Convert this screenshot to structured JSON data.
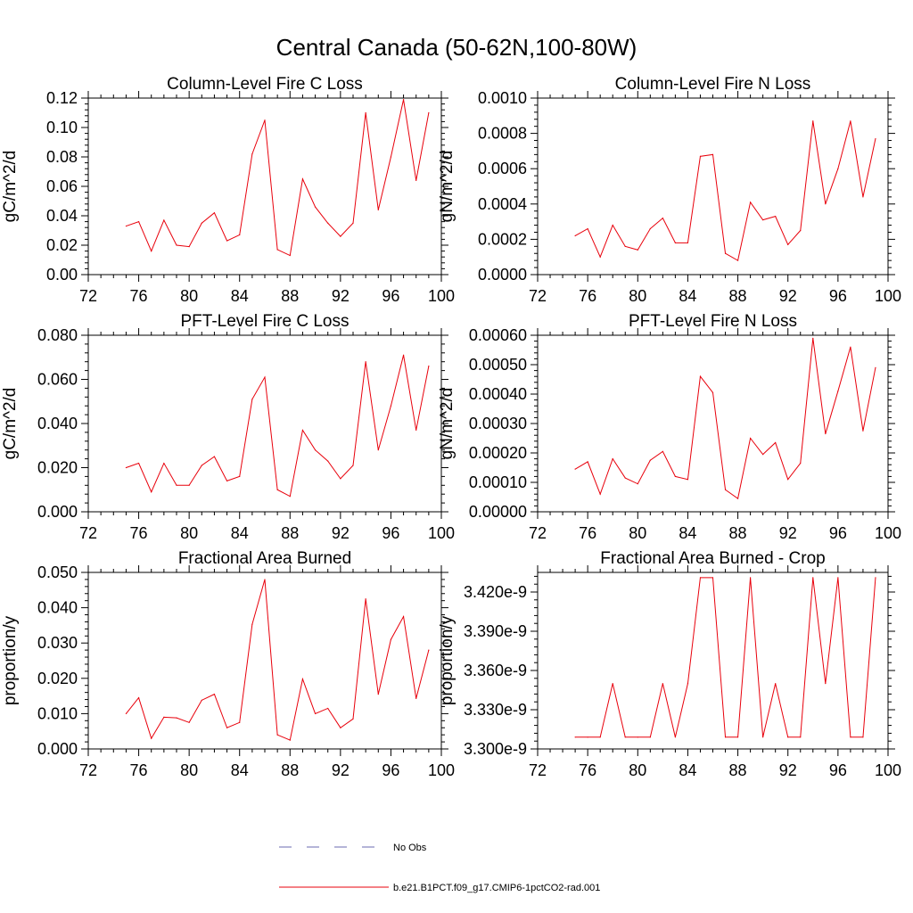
{
  "figure": {
    "title": "Central Canada (50-62N,100-80W)"
  },
  "chart_data": [
    {
      "type": "line",
      "title": "Column-Level Fire C Loss",
      "xlabel": "",
      "ylabel": "gC/m^2/d",
      "xlim": [
        72,
        100
      ],
      "ylim": [
        0,
        0.12
      ],
      "x_ticks": [
        "72",
        "76",
        "80",
        "84",
        "88",
        "92",
        "96",
        "100"
      ],
      "y_ticks": [
        "0.00",
        "0.02",
        "0.04",
        "0.06",
        "0.08",
        "0.10",
        "0.12"
      ],
      "x": [
        75,
        76,
        77,
        78,
        79,
        80,
        81,
        82,
        83,
        84,
        85,
        86,
        87,
        88,
        89,
        90,
        91,
        92,
        93,
        94,
        95,
        96,
        97,
        98,
        99
      ],
      "series": [
        {
          "name": "b.e21.B1PCT.f09_g17.CMIP6-1pctCO2-rad.001",
          "color": "#e8000b",
          "values": [
            0.033,
            0.036,
            0.016,
            0.037,
            0.02,
            0.019,
            0.035,
            0.042,
            0.023,
            0.027,
            0.082,
            0.105,
            0.017,
            0.013,
            0.065,
            0.046,
            0.035,
            0.026,
            0.035,
            0.11,
            0.044,
            0.08,
            0.119,
            0.064,
            0.11
          ]
        }
      ]
    },
    {
      "type": "line",
      "title": "Column-Level Fire N Loss",
      "xlabel": "",
      "ylabel": "gN/m^2/d",
      "xlim": [
        72,
        100
      ],
      "ylim": [
        0,
        0.001
      ],
      "x_ticks": [
        "72",
        "76",
        "80",
        "84",
        "88",
        "92",
        "96",
        "100"
      ],
      "y_ticks": [
        "0.0000",
        "0.0002",
        "0.0004",
        "0.0006",
        "0.0008",
        "0.0010"
      ],
      "x": [
        75,
        76,
        77,
        78,
        79,
        80,
        81,
        82,
        83,
        84,
        85,
        86,
        87,
        88,
        89,
        90,
        91,
        92,
        93,
        94,
        95,
        96,
        97,
        98,
        99
      ],
      "series": [
        {
          "name": "b.e21.B1PCT.f09_g17.CMIP6-1pctCO2-rad.001",
          "color": "#e8000b",
          "values": [
            0.00022,
            0.00026,
            0.0001,
            0.00028,
            0.00016,
            0.00014,
            0.00026,
            0.00032,
            0.00018,
            0.00018,
            0.00067,
            0.00068,
            0.00012,
            8e-05,
            0.00041,
            0.00031,
            0.00033,
            0.00017,
            0.00025,
            0.00087,
            0.0004,
            0.0006,
            0.00087,
            0.00044,
            0.00077
          ]
        }
      ]
    },
    {
      "type": "line",
      "title": "PFT-Level Fire C Loss",
      "xlabel": "",
      "ylabel": "gC/m^2/d",
      "xlim": [
        72,
        100
      ],
      "ylim": [
        0,
        0.08
      ],
      "x_ticks": [
        "72",
        "76",
        "80",
        "84",
        "88",
        "92",
        "96",
        "100"
      ],
      "y_ticks": [
        "0.000",
        "0.020",
        "0.040",
        "0.060",
        "0.080"
      ],
      "x": [
        75,
        76,
        77,
        78,
        79,
        80,
        81,
        82,
        83,
        84,
        85,
        86,
        87,
        88,
        89,
        90,
        91,
        92,
        93,
        94,
        95,
        96,
        97,
        98,
        99
      ],
      "series": [
        {
          "name": "b.e21.B1PCT.f09_g17.CMIP6-1pctCO2-rad.001",
          "color": "#e8000b",
          "values": [
            0.02,
            0.022,
            0.009,
            0.022,
            0.012,
            0.012,
            0.021,
            0.025,
            0.014,
            0.016,
            0.051,
            0.061,
            0.01,
            0.007,
            0.037,
            0.028,
            0.023,
            0.015,
            0.021,
            0.068,
            0.028,
            0.048,
            0.071,
            0.037,
            0.066
          ]
        }
      ]
    },
    {
      "type": "line",
      "title": "PFT-Level Fire N Loss",
      "xlabel": "",
      "ylabel": "gN/m^2/d",
      "xlim": [
        72,
        100
      ],
      "ylim": [
        0,
        0.0006
      ],
      "x_ticks": [
        "72",
        "76",
        "80",
        "84",
        "88",
        "92",
        "96",
        "100"
      ],
      "y_ticks": [
        "0.00000",
        "0.00010",
        "0.00020",
        "0.00030",
        "0.00040",
        "0.00050",
        "0.00060"
      ],
      "x": [
        75,
        76,
        77,
        78,
        79,
        80,
        81,
        82,
        83,
        84,
        85,
        86,
        87,
        88,
        89,
        90,
        91,
        92,
        93,
        94,
        95,
        96,
        97,
        98,
        99
      ],
      "series": [
        {
          "name": "b.e21.B1PCT.f09_g17.CMIP6-1pctCO2-rad.001",
          "color": "#e8000b",
          "values": [
            0.000145,
            0.00017,
            6e-05,
            0.00018,
            0.000115,
            9.5e-05,
            0.000175,
            0.000205,
            0.00012,
            0.00011,
            0.00046,
            0.000405,
            7.5e-05,
            4.5e-05,
            0.00025,
            0.000195,
            0.000235,
            0.00011,
            0.000165,
            0.00059,
            0.000265,
            0.00041,
            0.00056,
            0.000275,
            0.00049
          ]
        }
      ]
    },
    {
      "type": "line",
      "title": "Fractional Area Burned",
      "xlabel": "",
      "ylabel": "proportion/y",
      "xlim": [
        72,
        100
      ],
      "ylim": [
        0,
        0.05
      ],
      "x_ticks": [
        "72",
        "76",
        "80",
        "84",
        "88",
        "92",
        "96",
        "100"
      ],
      "y_ticks": [
        "0.000",
        "0.010",
        "0.020",
        "0.030",
        "0.040",
        "0.050"
      ],
      "x": [
        75,
        76,
        77,
        78,
        79,
        80,
        81,
        82,
        83,
        84,
        85,
        86,
        87,
        88,
        89,
        90,
        91,
        92,
        93,
        94,
        95,
        96,
        97,
        98,
        99
      ],
      "series": [
        {
          "name": "b.e21.B1PCT.f09_g17.CMIP6-1pctCO2-rad.001",
          "color": "#e8000b",
          "values": [
            0.01,
            0.0145,
            0.003,
            0.009,
            0.0088,
            0.0075,
            0.0138,
            0.0155,
            0.006,
            0.0075,
            0.0353,
            0.048,
            0.004,
            0.0025,
            0.0198,
            0.01,
            0.0115,
            0.006,
            0.0085,
            0.0425,
            0.0155,
            0.031,
            0.0375,
            0.0143,
            0.028
          ]
        }
      ]
    },
    {
      "type": "line",
      "title": "Fractional Area Burned - Crop",
      "xlabel": "",
      "ylabel": "proportion/y",
      "xlim": [
        72,
        100
      ],
      "ylim": [
        3.3e-09,
        3.435e-09
      ],
      "x_ticks": [
        "72",
        "76",
        "80",
        "84",
        "88",
        "92",
        "96",
        "100"
      ],
      "y_ticks": [
        "3.300e-9",
        "3.330e-9",
        "3.360e-9",
        "3.390e-9",
        "3.420e-9"
      ],
      "x": [
        75,
        76,
        77,
        78,
        79,
        80,
        81,
        82,
        83,
        84,
        85,
        86,
        87,
        88,
        89,
        90,
        91,
        92,
        93,
        94,
        95,
        96,
        97,
        98,
        99
      ],
      "series": [
        {
          "name": "b.e21.B1PCT.f09_g17.CMIP6-1pctCO2-rad.001",
          "color": "#e8000b",
          "values": [
            3.309e-09,
            3.309e-09,
            3.309e-09,
            3.35e-09,
            3.309e-09,
            3.309e-09,
            3.309e-09,
            3.35e-09,
            3.309e-09,
            3.35e-09,
            3.431e-09,
            3.431e-09,
            3.309e-09,
            3.309e-09,
            3.431e-09,
            3.309e-09,
            3.35e-09,
            3.309e-09,
            3.309e-09,
            3.431e-09,
            3.35e-09,
            3.431e-09,
            3.309e-09,
            3.309e-09,
            3.431e-09
          ]
        }
      ]
    }
  ],
  "legend": {
    "items": [
      {
        "label": "No Obs",
        "color": "#6a6ab0",
        "style": "dashed"
      },
      {
        "label": "b.e21.B1PCT.f09_g17.CMIP6-1pctCO2-rad.001",
        "color": "#e8000b",
        "style": "solid"
      }
    ]
  }
}
